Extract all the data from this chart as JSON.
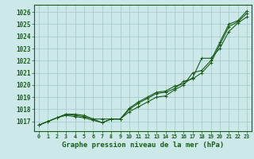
{
  "background_color": "#cce8e8",
  "grid_color": "#aacccc",
  "line_color": "#1a5c1a",
  "marker_color": "#1a5c1a",
  "xlabel": "Graphe pression niveau de la mer (hPa)",
  "xlabel_fontsize": 6.5,
  "xtick_fontsize": 4.8,
  "ytick_fontsize": 5.5,
  "ylim": [
    1016.2,
    1026.6
  ],
  "xlim": [
    -0.5,
    23.5
  ],
  "yticks": [
    1017,
    1018,
    1019,
    1020,
    1021,
    1022,
    1023,
    1024,
    1025,
    1026
  ],
  "xticks": [
    0,
    1,
    2,
    3,
    4,
    5,
    6,
    7,
    8,
    9,
    10,
    11,
    12,
    13,
    14,
    15,
    16,
    17,
    18,
    19,
    20,
    21,
    22,
    23
  ],
  "line1_x": [
    0,
    1,
    2,
    3,
    4,
    5,
    6,
    7,
    8,
    9,
    10,
    11,
    12,
    13,
    14,
    15,
    16,
    17,
    18,
    19,
    20,
    21,
    22,
    23
  ],
  "line1_y": [
    1016.7,
    1017.0,
    1017.3,
    1017.5,
    1017.4,
    1017.3,
    1017.1,
    1016.9,
    1017.2,
    1017.2,
    1018.0,
    1018.5,
    1018.9,
    1019.3,
    1019.4,
    1019.7,
    1020.3,
    1020.5,
    1021.0,
    1021.8,
    1023.3,
    1024.8,
    1025.2,
    1025.9
  ],
  "line2_x": [
    0,
    1,
    2,
    3,
    4,
    5,
    6,
    7,
    8,
    9,
    10,
    11,
    12,
    13,
    14,
    15,
    16,
    17,
    18,
    19,
    20,
    21,
    22,
    23
  ],
  "line2_y": [
    1016.7,
    1017.0,
    1017.3,
    1017.6,
    1017.5,
    1017.4,
    1017.2,
    1017.2,
    1017.2,
    1017.2,
    1018.1,
    1018.6,
    1019.0,
    1019.4,
    1019.5,
    1019.9,
    1020.1,
    1020.6,
    1022.2,
    1022.2,
    1023.0,
    1024.4,
    1025.1,
    1025.6
  ],
  "line3_x": [
    0,
    1,
    2,
    3,
    4,
    5,
    6,
    7,
    8,
    9,
    10,
    11,
    12,
    13,
    14,
    15,
    16,
    17,
    18,
    19,
    20,
    21,
    22,
    23
  ],
  "line3_y": [
    1016.7,
    1017.0,
    1017.3,
    1017.6,
    1017.6,
    1017.5,
    1017.2,
    1016.9,
    1017.2,
    1017.2,
    1017.8,
    1018.2,
    1018.6,
    1019.0,
    1019.1,
    1019.6,
    1020.0,
    1021.0,
    1021.2,
    1022.0,
    1023.5,
    1025.0,
    1025.3,
    1026.1
  ]
}
